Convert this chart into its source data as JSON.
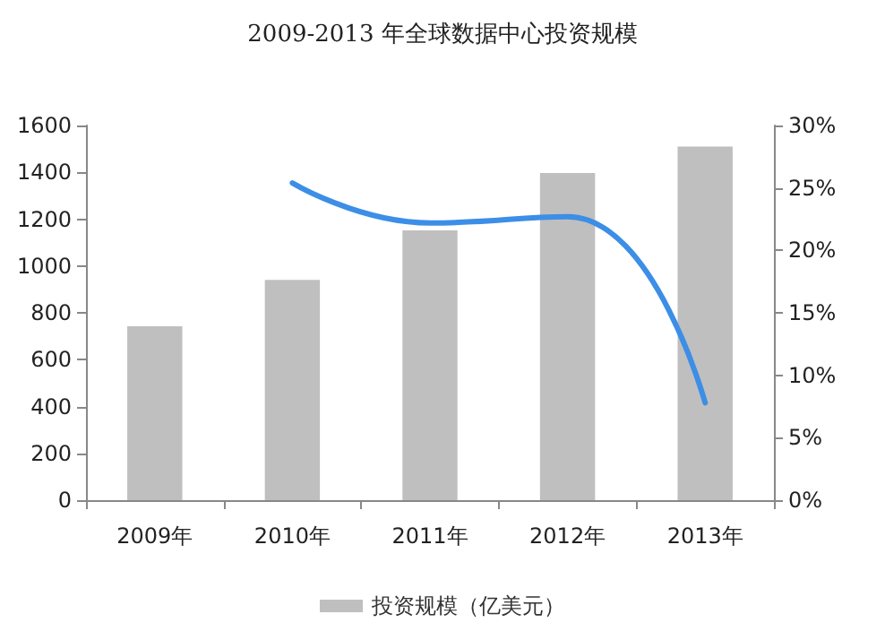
{
  "chart_data": {
    "type": "bar",
    "title": "2009-2013 年全球数据中心投资规模",
    "categories": [
      "2009年",
      "2010年",
      "2011年",
      "2012年",
      "2013年"
    ],
    "series": [
      {
        "name": "投资规模（亿美元）",
        "color": "#bfbfbf",
        "values": [
          743,
          941,
          1152,
          1397,
          1510
        ]
      },
      {
        "type": "line",
        "axis": "y2",
        "color": "#3c8ee6",
        "values": [
          null,
          25.4,
          22.2,
          22.7,
          7.8
        ]
      }
    ],
    "ylim": [
      0,
      1600
    ],
    "yticks": [
      0,
      200,
      400,
      600,
      800,
      1000,
      1200,
      1400,
      1600
    ],
    "y2lim": [
      0,
      30
    ],
    "y2ticks": [
      {
        "value": 0,
        "label": "0%"
      },
      {
        "value": 5,
        "label": "5%"
      },
      {
        "value": 10,
        "label": "10%"
      },
      {
        "value": 15,
        "label": "15%"
      },
      {
        "value": 20,
        "label": "20%"
      },
      {
        "value": 25,
        "label": "25%"
      },
      {
        "value": 30,
        "label": "30%"
      }
    ],
    "legend": "bottom",
    "grid": false,
    "marker": "none"
  }
}
